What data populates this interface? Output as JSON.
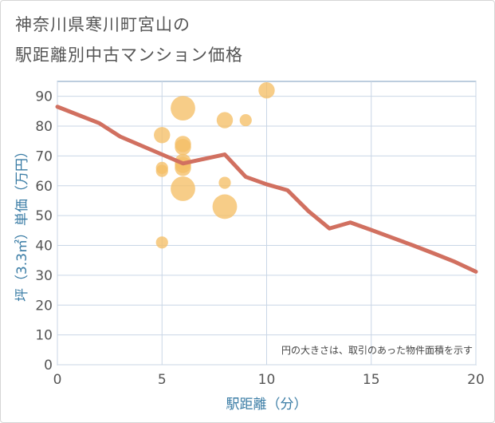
{
  "title_line1": "神奈川県寒川町宮山の",
  "title_line2": "駅距離別中古マンション価格",
  "chart_data": {
    "type": "scatter",
    "xlabel": "駅距離（分）",
    "ylabel": "坪（3.3㎡）単価（万円）",
    "xlim": [
      0,
      20
    ],
    "ylim": [
      0,
      95
    ],
    "xticks": [
      0,
      5,
      10,
      15,
      20
    ],
    "yticks": [
      0,
      10,
      20,
      30,
      40,
      50,
      60,
      70,
      80,
      90
    ],
    "grid": true,
    "note": "円の大きさは、取引のあった物件面積を示す",
    "bubbles": [
      {
        "x": 5,
        "y": 77,
        "size": 2
      },
      {
        "x": 5,
        "y": 66,
        "size": 1
      },
      {
        "x": 5,
        "y": 65,
        "size": 1
      },
      {
        "x": 5,
        "y": 41,
        "size": 1
      },
      {
        "x": 6,
        "y": 86,
        "size": 4
      },
      {
        "x": 6,
        "y": 74,
        "size": 2
      },
      {
        "x": 6,
        "y": 73,
        "size": 2
      },
      {
        "x": 6,
        "y": 68,
        "size": 2
      },
      {
        "x": 6,
        "y": 67,
        "size": 2
      },
      {
        "x": 6,
        "y": 66,
        "size": 2
      },
      {
        "x": 6,
        "y": 59,
        "size": 4
      },
      {
        "x": 8,
        "y": 82,
        "size": 2
      },
      {
        "x": 8,
        "y": 61,
        "size": 1
      },
      {
        "x": 8,
        "y": 53,
        "size": 4
      },
      {
        "x": 9,
        "y": 82,
        "size": 1
      },
      {
        "x": 10,
        "y": 92,
        "size": 2
      }
    ],
    "trend": {
      "x": [
        0,
        2,
        3,
        6,
        8,
        9,
        10,
        11,
        12,
        13,
        14,
        15,
        16,
        17,
        18,
        19,
        20
      ],
      "y": [
        86.5,
        81,
        76.5,
        67.5,
        70.5,
        63,
        60.5,
        58.5,
        51.5,
        45.7,
        47.7,
        45.2,
        42.6,
        40,
        37.3,
        34.5,
        31.2
      ]
    },
    "colors": {
      "bubble": "#f5bf66",
      "trend": "#d17060",
      "grid": "#c9d6e6",
      "border": "#7a9bbd"
    }
  }
}
